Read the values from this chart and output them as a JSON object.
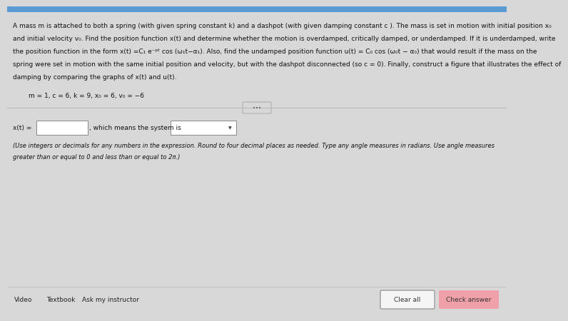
{
  "bg_color": "#d8d8d8",
  "top_bar_color": "#5b9bd5",
  "text_color": "#111111",
  "para_text_lines": [
    "A mass m is attached to both a spring (with given spring constant k) and a dashpot (with given damping constant c ). The mass is set in motion with initial position x₀",
    "and initial velocity v₀. Find the position function x(t) and determine whether the motion is overdamped, critically damped, or underdamped. If it is underdamped, write",
    "the position function in the form x(t) =C₁ e⁻ᵖᵗ cos (ω₁t−α₁). Also, find the undamped position function u(t) = C₀ cos (ω₀t − α₀) that would result if the mass on the",
    "spring were set in motion with the same initial position and velocity, but with the dashpot disconnected (so c = 0). Finally, construct a figure that illustrates the effect of",
    "damping by comparing the graphs of x(t) and u(t)."
  ],
  "params_text": "m = 1, c = 6, k = 9, x₀ = 6, v₀ = −6",
  "answer_prefix": "x(t) =",
  "answer_suffix": ", which means the system is",
  "expand_text": "•••",
  "note_lines": [
    "(Use integers or decimals for any numbers in the expression. Round to four decimal places as needed. Type any angle measures in radians. Use angle measures",
    "greater than or equal to 0 and less than or equal to 2π.)"
  ],
  "bottom_links": [
    "Video",
    "Textbook",
    "Ask my instructor"
  ],
  "clear_btn_text": "Clear all",
  "check_btn_text": "Check answer",
  "check_btn_color": "#f0a0a8",
  "clear_btn_border": "#888888",
  "divider_color": "#bbbbbb"
}
